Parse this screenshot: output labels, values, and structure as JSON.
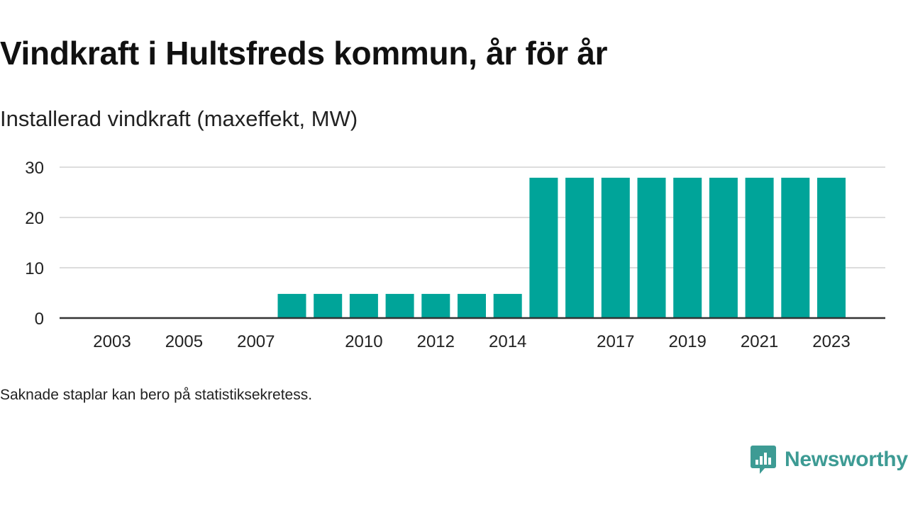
{
  "title": "Vindkraft i Hultsfreds kommun, år för år",
  "subtitle": "Installerad vindkraft (maxeffekt, MW)",
  "note": "Saknade staplar kan bero på statistiksekretess.",
  "brand": {
    "name": "Newsworthy",
    "color": "#3d9b94",
    "icon": "newsworthy-chat-bar-icon"
  },
  "colors": {
    "bar": "#00a499",
    "grid": "#dddddd",
    "axis": "#333333",
    "text": "#222222"
  },
  "chart_data": {
    "type": "bar",
    "title": "Vindkraft i Hultsfreds kommun, år för år",
    "subtitle": "Installerad vindkraft (maxeffekt, MW)",
    "xlabel": "",
    "ylabel": "",
    "categories": [
      "2003",
      "2004",
      "2005",
      "2006",
      "2007",
      "2008",
      "2009",
      "2010",
      "2011",
      "2012",
      "2013",
      "2014",
      "2015",
      "2016",
      "2017",
      "2018",
      "2019",
      "2020",
      "2021",
      "2022",
      "2023"
    ],
    "values": [
      0,
      0,
      0,
      0,
      0,
      4.8,
      4.8,
      4.8,
      4.8,
      4.8,
      4.8,
      4.8,
      27.9,
      27.9,
      27.9,
      27.9,
      27.9,
      27.9,
      27.9,
      27.9,
      27.9
    ],
    "xticks": [
      "2003",
      "2005",
      "2007",
      "2010",
      "2012",
      "2014",
      "2017",
      "2019",
      "2021",
      "2023"
    ],
    "yticks": [
      0,
      10,
      20,
      30
    ],
    "ylim": [
      0,
      30
    ],
    "grid": true,
    "legend": "none"
  }
}
